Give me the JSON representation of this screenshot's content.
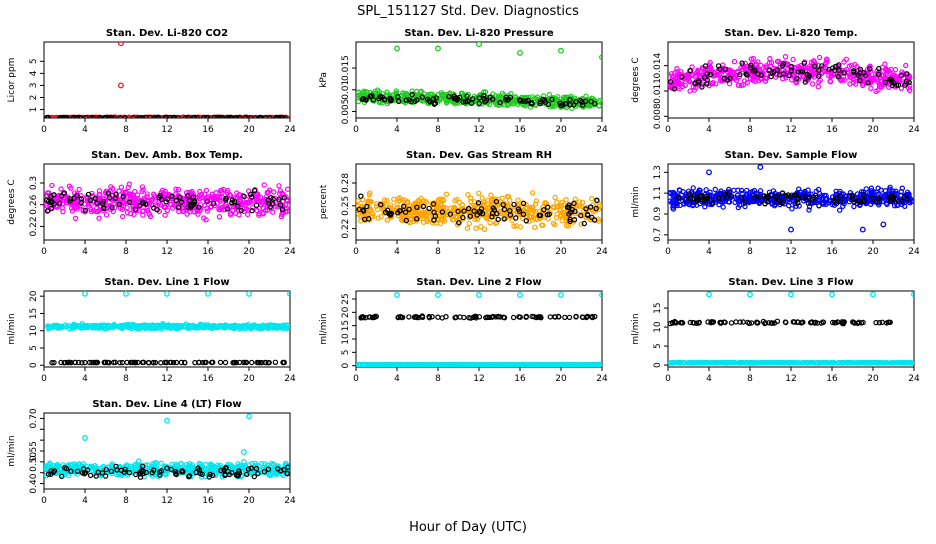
{
  "main_title": "SPL_151127  Std. Dev. Diagnostics",
  "x_axis_label": "Hour of Day (UTC)",
  "colors": {
    "red": "#e41a1c",
    "green": "#22cc22",
    "magenta": "#ff00ff",
    "orange": "#ffa500",
    "blue": "#0000ff",
    "cyan": "#00e5ee",
    "black": "#000000"
  },
  "chart_data": [
    {
      "type": "scatter",
      "title": "Stan. Dev. Li-820 CO2",
      "ylabel": "Licor ppm",
      "xlim": [
        0,
        24
      ],
      "xticks": [
        0,
        4,
        8,
        12,
        16,
        20,
        24
      ],
      "ylim": [
        0.3,
        6.6
      ],
      "yticks": [
        1,
        2,
        3,
        4,
        5
      ],
      "series": [
        {
          "color": "red",
          "baseline": 0.32,
          "spread": 0.04,
          "outliers": [
            [
              7.5,
              6.5
            ],
            [
              7.5,
              3.0
            ]
          ]
        },
        {
          "color": "black",
          "baseline": 0.32,
          "spread": 0.03,
          "outliers": []
        }
      ]
    },
    {
      "type": "scatter",
      "title": "Stan. Dev. Li-820 Pressure",
      "ylabel": "kPa",
      "xlim": [
        0,
        24
      ],
      "xticks": [
        0,
        4,
        8,
        12,
        16,
        20,
        24
      ],
      "ylim": [
        0.0035,
        0.021
      ],
      "yticks": [
        0.005,
        0.01,
        0.015
      ],
      "series": [
        {
          "color": "green",
          "baseline": 0.0085,
          "spread": 0.0012,
          "trend": -0.0015,
          "outliers": [
            [
              4,
              0.0195
            ],
            [
              8,
              0.0195
            ],
            [
              12,
              0.0205
            ],
            [
              16,
              0.0185
            ],
            [
              20,
              0.019
            ],
            [
              24,
              0.0175
            ]
          ]
        },
        {
          "color": "black",
          "baseline": 0.008,
          "spread": 0.0009,
          "trend": -0.001,
          "outliers": []
        }
      ]
    },
    {
      "type": "scatter",
      "title": "Stan. Dev. Li-820 Temp.",
      "ylabel": "degrees C",
      "xlim": [
        0,
        24
      ],
      "xticks": [
        0,
        4,
        8,
        12,
        16,
        20,
        24
      ],
      "ylim": [
        0.0078,
        0.0168
      ],
      "yticks": [
        0.008,
        0.011,
        0.014
      ],
      "series": [
        {
          "color": "magenta",
          "baseline": 0.0128,
          "spread": 0.0012,
          "arch": 0.0012,
          "outliers": []
        },
        {
          "color": "black",
          "baseline": 0.0128,
          "spread": 0.001,
          "arch": 0.0012,
          "outliers": []
        }
      ]
    },
    {
      "type": "scatter",
      "title": "Stan. Dev. Amb. Box Temp.",
      "ylabel": "degrees C",
      "xlim": [
        0,
        24
      ],
      "xticks": [
        0,
        4,
        8,
        12,
        16,
        20,
        24
      ],
      "ylim": [
        0.195,
        0.335
      ],
      "yticks": [
        0.22,
        0.26,
        0.3
      ],
      "series": [
        {
          "color": "magenta",
          "baseline": 0.265,
          "spread": 0.022,
          "outliers": []
        },
        {
          "color": "black",
          "baseline": 0.265,
          "spread": 0.015,
          "outliers": []
        }
      ]
    },
    {
      "type": "scatter",
      "title": "Stan. Dev. Gas Stream RH",
      "ylabel": "percent",
      "xlim": [
        0,
        24
      ],
      "xticks": [
        0,
        4,
        8,
        12,
        16,
        20,
        24
      ],
      "ylim": [
        0.205,
        0.305
      ],
      "yticks": [
        0.22,
        0.25,
        0.28
      ],
      "series": [
        {
          "color": "orange",
          "baseline": 0.243,
          "spread": 0.016,
          "outliers": []
        },
        {
          "color": "black",
          "baseline": 0.243,
          "spread": 0.013,
          "outliers": []
        }
      ]
    },
    {
      "type": "scatter",
      "title": "Stan. Dev. Sample Flow",
      "ylabel": "ml/min",
      "xlim": [
        0,
        24
      ],
      "xticks": [
        0,
        4,
        8,
        12,
        16,
        20,
        24
      ],
      "ylim": [
        0.65,
        1.38
      ],
      "yticks": [
        0.7,
        0.9,
        1.1,
        1.3
      ],
      "series": [
        {
          "color": "blue",
          "baseline": 1.05,
          "spread": 0.07,
          "outliers": [
            [
              4,
              1.3
            ],
            [
              9,
              1.35
            ],
            [
              12,
              0.75
            ],
            [
              19,
              0.75
            ],
            [
              21,
              0.8
            ]
          ]
        },
        {
          "color": "black",
          "baseline": 1.05,
          "spread": 0.05,
          "outliers": []
        }
      ]
    },
    {
      "type": "scatter",
      "title": "Stan. Dev. Line 1 Flow",
      "ylabel": "ml/min",
      "xlim": [
        0,
        24
      ],
      "xticks": [
        0,
        4,
        8,
        12,
        16,
        20,
        24
      ],
      "ylim": [
        -0.5,
        21.5
      ],
      "yticks": [
        0,
        5,
        10,
        15,
        20
      ],
      "series": [
        {
          "color": "cyan",
          "baseline": 11.2,
          "spread": 0.5,
          "outliers": [
            [
              4,
              20.7
            ],
            [
              8,
              20.7
            ],
            [
              12,
              20.7
            ],
            [
              16,
              20.7
            ],
            [
              20,
              20.7
            ],
            [
              24,
              20.7
            ]
          ]
        },
        {
          "color": "black",
          "baseline": 0.8,
          "spread": 0.05,
          "outliers": []
        }
      ]
    },
    {
      "type": "scatter",
      "title": "Stan. Dev. Line 2 Flow",
      "ylabel": "ml/min",
      "xlim": [
        0,
        24
      ],
      "xticks": [
        0,
        4,
        8,
        12,
        16,
        20,
        24
      ],
      "ylim": [
        -0.5,
        28
      ],
      "yticks": [
        0,
        5,
        10,
        15,
        20,
        25
      ],
      "series": [
        {
          "color": "cyan",
          "baseline": 0.35,
          "spread": 0.05,
          "outliers": [
            [
              4,
              26.5
            ],
            [
              8,
              26.5
            ],
            [
              12,
              26.5
            ],
            [
              16,
              26.5
            ],
            [
              20,
              26.5
            ],
            [
              24,
              26.5
            ]
          ]
        },
        {
          "color": "black",
          "baseline": 18.2,
          "spread": 0.3,
          "outliers": []
        }
      ]
    },
    {
      "type": "scatter",
      "title": "Stan. Dev. Line 3 Flow",
      "ylabel": "ml/min",
      "xlim": [
        0,
        24
      ],
      "xticks": [
        0,
        4,
        8,
        12,
        16,
        20,
        24
      ],
      "ylim": [
        -0.5,
        19.5
      ],
      "yticks": [
        0,
        5,
        10,
        15
      ],
      "series": [
        {
          "color": "cyan",
          "baseline": 0.6,
          "spread": 0.05,
          "outliers": [
            [
              4,
              18.6
            ],
            [
              8,
              18.6
            ],
            [
              12,
              18.6
            ],
            [
              16,
              18.6
            ],
            [
              20,
              18.6
            ],
            [
              24,
              18.6
            ]
          ]
        },
        {
          "color": "black",
          "baseline": 11.2,
          "spread": 0.25,
          "outliers": []
        }
      ]
    },
    {
      "type": "scatter",
      "title": "Stan. Dev. Line 4 (LT) Flow",
      "ylabel": "ml/min",
      "xlim": [
        0,
        24
      ],
      "xticks": [
        0,
        4,
        8,
        12,
        16,
        20,
        24
      ],
      "ylim": [
        0.375,
        0.725
      ],
      "yticks": [
        0.4,
        0.45,
        0.5,
        0.55,
        0.6,
        0.65,
        0.7
      ],
      "ytick_labels": [
        "0.40",
        "",
        "0.50",
        "0.55",
        "",
        "",
        "0.70"
      ],
      "series": [
        {
          "color": "cyan",
          "baseline": 0.465,
          "spread": 0.025,
          "outliers": [
            [
              4,
              0.61
            ],
            [
              12,
              0.69
            ],
            [
              20,
              0.71
            ],
            [
              19.5,
              0.545
            ]
          ]
        },
        {
          "color": "black",
          "baseline": 0.455,
          "spread": 0.02,
          "outliers": []
        }
      ]
    }
  ]
}
